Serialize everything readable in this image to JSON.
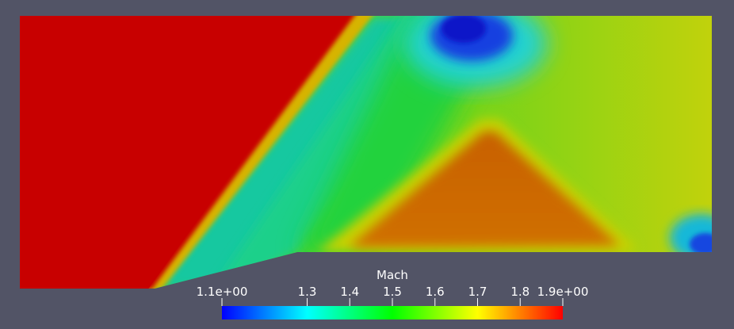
{
  "colorbar": {
    "title": "Mach",
    "range": [
      1.1,
      1.9
    ],
    "ticks": [
      {
        "value": 1.1,
        "label": "1.1e+00"
      },
      {
        "value": 1.3,
        "label": "1.3"
      },
      {
        "value": 1.4,
        "label": "1.4"
      },
      {
        "value": 1.5,
        "label": "1.5"
      },
      {
        "value": 1.6,
        "label": "1.6"
      },
      {
        "value": 1.7,
        "label": "1.7"
      },
      {
        "value": 1.8,
        "label": "1.8"
      },
      {
        "value": 1.9,
        "label": "1.9e+00"
      }
    ],
    "colormap": [
      "#0000ff",
      "#00ffff",
      "#00ff00",
      "#ffff00",
      "#ff0000"
    ]
  },
  "colors": {
    "background": "#525466",
    "freestream": "#c80000",
    "low_mach": "#0a2fd0",
    "mid_mach": "#1ad21a",
    "high_mach": "#d06a00"
  }
}
